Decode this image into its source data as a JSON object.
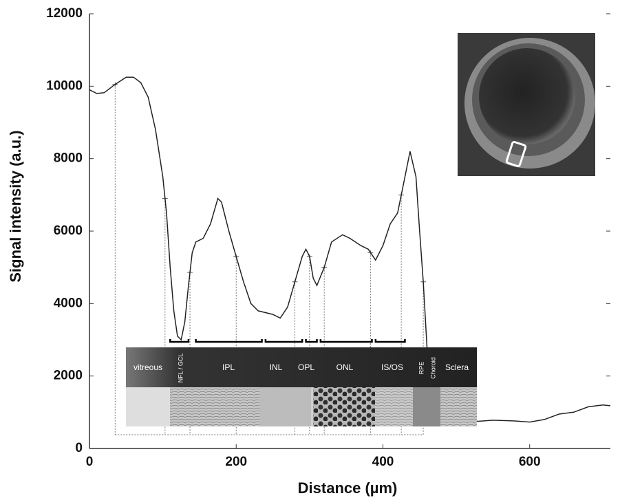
{
  "chart_data": {
    "type": "line",
    "xlabel": "Distance (µm)",
    "ylabel": "Signal intensity (a.u.)",
    "x": [
      0,
      10,
      20,
      35,
      50,
      60,
      70,
      80,
      90,
      100,
      105,
      110,
      115,
      120,
      125,
      130,
      135,
      140,
      145,
      155,
      165,
      175,
      180,
      190,
      200,
      210,
      220,
      230,
      250,
      260,
      270,
      280,
      290,
      295,
      300,
      305,
      310,
      320,
      330,
      345,
      355,
      370,
      380,
      390,
      400,
      410,
      420,
      430,
      437,
      445,
      450,
      455,
      460,
      465,
      500,
      530,
      550,
      580,
      600,
      620,
      640,
      660,
      680,
      700,
      710
    ],
    "values": [
      9900,
      9800,
      9820,
      10050,
      10250,
      10250,
      10100,
      9700,
      8800,
      7500,
      6500,
      5000,
      3800,
      3100,
      3000,
      3500,
      4500,
      5400,
      5700,
      5800,
      6200,
      6900,
      6800,
      6000,
      5300,
      4600,
      4000,
      3800,
      3700,
      3600,
      3900,
      4600,
      5300,
      5500,
      5300,
      4700,
      4500,
      5000,
      5700,
      5900,
      5800,
      5600,
      5500,
      5200,
      5600,
      6200,
      6500,
      7500,
      8200,
      7500,
      6000,
      4600,
      2800,
      1200,
      800,
      750,
      780,
      760,
      730,
      800,
      950,
      1000,
      1150,
      1200,
      1180
    ],
    "color": "#222222",
    "xlim": [
      0,
      710
    ],
    "ylim": [
      0,
      12000
    ],
    "xticks": [
      0,
      200,
      400,
      600
    ],
    "yticks": [
      0,
      2000,
      4000,
      6000,
      8000,
      10000,
      12000
    ],
    "boundaries": [
      35,
      103,
      137,
      200,
      280,
      300,
      320,
      383,
      425,
      455
    ],
    "brackets": [
      [
        110,
        135
      ],
      [
        145,
        235
      ],
      [
        240,
        290
      ],
      [
        295,
        310
      ],
      [
        315,
        385
      ],
      [
        390,
        430
      ]
    ],
    "layers": [
      "vitreous",
      "NFL / GCL",
      "IPL",
      "INL",
      "OPL",
      "ONL",
      "IS/OS",
      "RPE",
      "Choroid",
      "Sclera"
    ]
  }
}
